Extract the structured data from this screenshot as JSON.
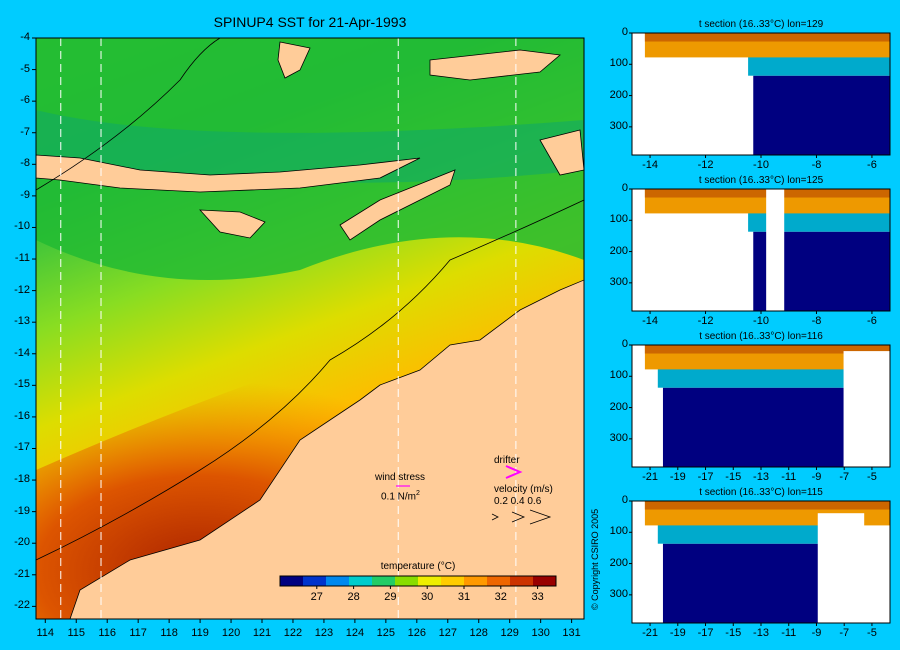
{
  "map": {
    "title": "SPINUP4 SST for 21-Apr-1993",
    "lon_ticks": [
      "114",
      "115",
      "116",
      "117",
      "118",
      "119",
      "120",
      "121",
      "122",
      "123",
      "124",
      "125",
      "126",
      "127",
      "128",
      "129",
      "130",
      "131"
    ],
    "lat_ticks": [
      "-4",
      "-5",
      "-6",
      "-7",
      "-8",
      "-9",
      "-10",
      "-11",
      "-12",
      "-13",
      "-14",
      "-15",
      "-16",
      "-17",
      "-18",
      "-19",
      "-20",
      "-21",
      "-22"
    ],
    "section_lons": [
      114.5,
      115.8,
      125.4,
      129.2
    ],
    "land_color": "#ffcc99",
    "ocean_color": "#22bb22"
  },
  "legend": {
    "wind_stress_label": "wind stress",
    "wind_stress_value": "0.1 N/m",
    "wind_stress_exp": "2",
    "drifter_label": "drifter",
    "velocity_label": "velocity (m/s)",
    "velocity_values": "0.2 0.4 0.6",
    "drifter_color": "#ff00ff",
    "wind_arrow_color": "#ff00ff"
  },
  "colorbar": {
    "title": "temperature (°C)",
    "ticks": [
      "27",
      "28",
      "29",
      "30",
      "31",
      "32",
      "33"
    ],
    "range": [
      26,
      33.5
    ],
    "colors": [
      "#000080",
      "#0033cc",
      "#0088ee",
      "#00cccc",
      "#22cc66",
      "#88dd00",
      "#eeee00",
      "#ffcc00",
      "#ff9900",
      "#ee6600",
      "#cc3300",
      "#990000"
    ]
  },
  "sections": [
    {
      "title": "t section (16..33°C) lon=129",
      "x_ticks": [
        "-14",
        "-12",
        "-10",
        "-8",
        "-6"
      ],
      "y_ticks": [
        "0",
        "100",
        "200",
        "300"
      ]
    },
    {
      "title": "t section (16..33°C) lon=125",
      "x_ticks": [
        "-14",
        "-12",
        "-10",
        "-8",
        "-6"
      ],
      "y_ticks": [
        "0",
        "100",
        "200",
        "300"
      ]
    },
    {
      "title": "t section (16..33°C) lon=116",
      "x_ticks": [
        "-21",
        "-19",
        "-17",
        "-15",
        "-13",
        "-11",
        "-9",
        "-7",
        "-5"
      ],
      "y_ticks": [
        "0",
        "100",
        "200",
        "300"
      ]
    },
    {
      "title": "t section (16..33°C) lon=115",
      "x_ticks": [
        "-21",
        "-19",
        "-17",
        "-15",
        "-13",
        "-11",
        "-9",
        "-7",
        "-5"
      ],
      "y_ticks": [
        "0",
        "100",
        "200",
        "300"
      ]
    }
  ],
  "copyright": "© Copyright CSIRO 2005"
}
